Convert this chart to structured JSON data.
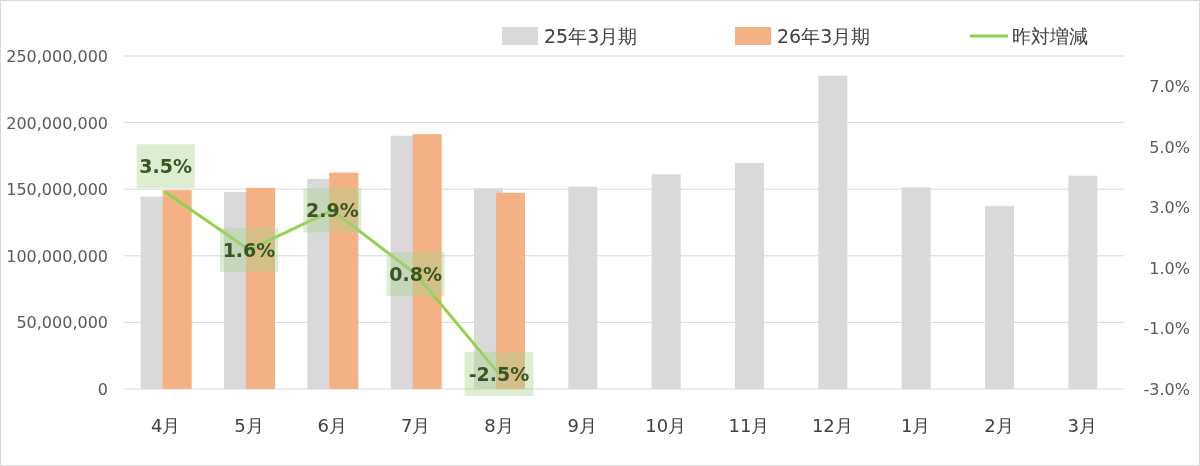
{
  "chart_data": {
    "type": "bar",
    "categories": [
      "4月",
      "5月",
      "6月",
      "7月",
      "8月",
      "9月",
      "10月",
      "11月",
      "12月",
      "1月",
      "2月",
      "3月"
    ],
    "series": [
      {
        "name": "25年3月期",
        "color": "#d9d9d9",
        "values": [
          144400000,
          147900000,
          157700000,
          190200000,
          150700000,
          151900000,
          161200000,
          169700000,
          235200000,
          151400000,
          137300000,
          160200000
        ]
      },
      {
        "name": "26年3月期",
        "color": "#f4b183",
        "values": [
          149300000,
          151000000,
          162500000,
          191300000,
          147300000,
          null,
          null,
          null,
          null,
          null,
          null,
          null
        ]
      },
      {
        "name": "昨対増減",
        "type": "line",
        "axis": "y2",
        "color": "#92d050",
        "values": [
          3.5,
          1.6,
          2.9,
          0.8,
          -2.5,
          null,
          null,
          null,
          null,
          null,
          null,
          null
        ],
        "value_labels": [
          "3.5%",
          "1.6%",
          "2.9%",
          "0.8%",
          "-2.5%",
          null,
          null,
          null,
          null,
          null,
          null,
          null
        ]
      }
    ],
    "ylim": [
      0,
      250000000
    ],
    "yticks": [
      0,
      {
        "value": 50000000,
        "label": "50,000,000"
      },
      {
        "value": 100000000,
        "label": "100,000,000"
      },
      {
        "value": 150000000,
        "label": "150,000,000"
      },
      {
        "value": 200000000,
        "label": "200,000,000"
      },
      {
        "value": 250000000,
        "label": "250,000,000"
      }
    ],
    "y2lim": [
      -3,
      8
    ],
    "y2ticks": [
      {
        "value": -3,
        "label": "-3.0%"
      },
      {
        "value": -1,
        "label": "-1.0%"
      },
      {
        "value": 1,
        "label": "1.0%"
      },
      {
        "value": 3,
        "label": "3.0%"
      },
      {
        "value": 5,
        "label": "5.0%"
      },
      {
        "value": 7,
        "label": "7.0%"
      }
    ],
    "grid": "y",
    "legend": "top"
  }
}
